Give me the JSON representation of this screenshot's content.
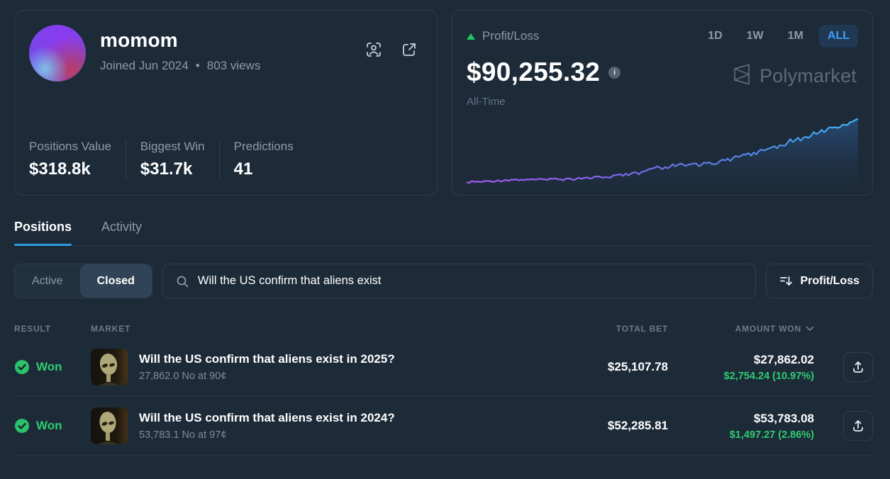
{
  "profile": {
    "username": "momom",
    "joined": "Joined Jun 2024",
    "meta_separator": "•",
    "views": "803 views",
    "stats": [
      {
        "label": "Positions Value",
        "value": "$318.8k"
      },
      {
        "label": "Biggest Win",
        "value": "$31.7k"
      },
      {
        "label": "Predictions",
        "value": "41"
      }
    ]
  },
  "pnl": {
    "label": "Profit/Loss",
    "value": "$90,255.32",
    "period_label": "All-Time",
    "ranges": [
      {
        "label": "1D",
        "selected": false
      },
      {
        "label": "1W",
        "selected": false
      },
      {
        "label": "1M",
        "selected": false
      },
      {
        "label": "ALL",
        "selected": true
      }
    ],
    "watermark": "Polymarket"
  },
  "chart_data": {
    "type": "line",
    "title": "Profit/Loss All-Time",
    "series_name": "Profit/Loss ($)",
    "x": [
      0,
      2,
      4,
      6,
      8,
      10,
      12,
      14,
      16,
      18,
      20,
      22,
      24,
      26,
      28,
      30,
      32,
      34,
      36,
      38,
      40,
      42,
      44,
      46,
      48,
      50,
      52,
      54,
      56,
      58,
      60,
      62,
      64,
      66,
      68,
      70,
      72,
      74,
      76,
      78,
      80,
      82,
      84,
      86,
      88,
      90,
      92,
      94,
      96,
      98,
      100
    ],
    "values": [
      3800,
      4300,
      4100,
      5200,
      6300,
      6900,
      7100,
      7200,
      7300,
      7400,
      7600,
      8200,
      7600,
      8800,
      8200,
      9600,
      9000,
      11500,
      10500,
      13500,
      12500,
      15500,
      14500,
      20000,
      23500,
      21500,
      25000,
      27500,
      26000,
      29500,
      27500,
      31000,
      29000,
      33500,
      36500,
      39500,
      43500,
      42000,
      47000,
      51500,
      54500,
      58000,
      61500,
      64500,
      67500,
      71500,
      75500,
      79000,
      82500,
      86000,
      90255.32
    ],
    "ylim": [
      0,
      95000
    ],
    "final_value": 90255.32,
    "axes_hidden": true,
    "grid": false,
    "line_gradient": [
      "#a258f0",
      "#8a63ec",
      "#6573e6",
      "#4b8ee3",
      "#3fb4f6"
    ],
    "fill_color": "rgba(62,140,246,0.30)"
  },
  "tabs": [
    {
      "label": "Positions",
      "active": true
    },
    {
      "label": "Activity",
      "active": false
    }
  ],
  "filters": {
    "segments": [
      {
        "label": "Active",
        "selected": false
      },
      {
        "label": "Closed",
        "selected": true
      }
    ],
    "search": {
      "value": "Will the US confirm that aliens exist"
    },
    "sort_button": "Profit/Loss"
  },
  "table": {
    "columns": [
      "RESULT",
      "MARKET",
      "TOTAL BET",
      "AMOUNT WON"
    ],
    "rows": [
      {
        "result": "Won",
        "title": "Will the US confirm that aliens exist in 2025?",
        "subtitle": "27,862.0 No at 90¢",
        "total_bet": "$25,107.78",
        "amount_won": "$27,862.02",
        "profit": "$2,754.24 (10.97%)"
      },
      {
        "result": "Won",
        "title": "Will the US confirm that aliens exist in 2024?",
        "subtitle": "53,783.1 No at 97¢",
        "total_bet": "$52,285.81",
        "amount_won": "$53,783.08",
        "profit": "$1,497.27 (2.86%)"
      }
    ]
  },
  "colors": {
    "background": "#1d2b39",
    "card_border": "#2c3b4b",
    "accent_blue": "#3f9ff8",
    "tab_underline": "#2d9cdb",
    "positive_green": "#2ecc71",
    "text_secondary": "#8b99aa",
    "text_muted": "#6b7a8c"
  }
}
